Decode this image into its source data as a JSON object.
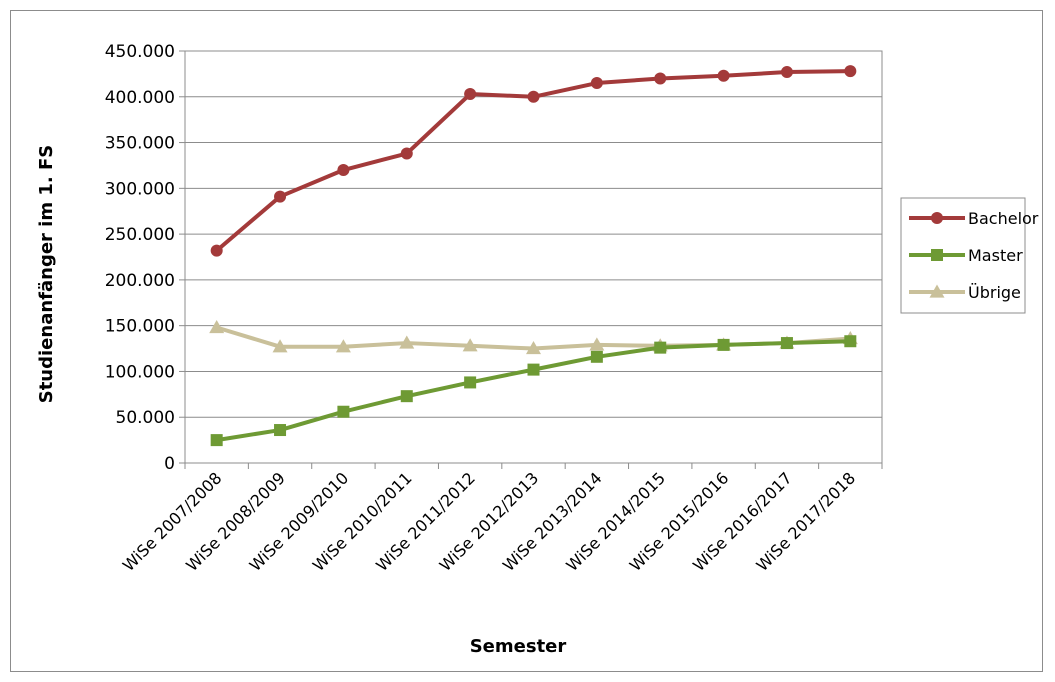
{
  "chart_data": {
    "type": "line",
    "title": "",
    "xlabel": "Semester",
    "ylabel": "Studienanfänger im 1. FS",
    "categories": [
      "WiSe 2007/2008",
      "WiSe 2008/2009",
      "WiSe 2009/2010",
      "WiSe 2010/2011",
      "WiSe 2011/2012",
      "WiSe 2012/2013",
      "WiSe 2013/2014",
      "WiSe 2014/2015",
      "WiSe 2015/2016",
      "WiSe 2016/2017",
      "WiSe 2017/2018"
    ],
    "ylim": [
      0,
      450000
    ],
    "yticks": [
      0,
      50000,
      100000,
      150000,
      200000,
      250000,
      300000,
      350000,
      400000,
      450000
    ],
    "ytick_labels": [
      "0",
      "50.000",
      "100.000",
      "150.000",
      "200.000",
      "250.000",
      "300.000",
      "350.000",
      "400.000",
      "450.000"
    ],
    "grid": true,
    "legend_position": "right",
    "series": [
      {
        "name": "Bachelor",
        "color": "#a33a3a",
        "marker": "circle",
        "values": [
          232000,
          291000,
          320000,
          338000,
          403000,
          400000,
          415000,
          420000,
          423000,
          427000,
          428000
        ]
      },
      {
        "name": "Master",
        "color": "#6e9a34",
        "marker": "square",
        "values": [
          25000,
          36000,
          56000,
          73000,
          88000,
          102000,
          116000,
          126000,
          129000,
          131000,
          133000
        ]
      },
      {
        "name": "Übrige",
        "color": "#c9c09a",
        "marker": "triangle",
        "values": [
          148000,
          127000,
          127000,
          131000,
          128000,
          125000,
          129000,
          128000,
          129000,
          131000,
          136000
        ]
      }
    ]
  }
}
